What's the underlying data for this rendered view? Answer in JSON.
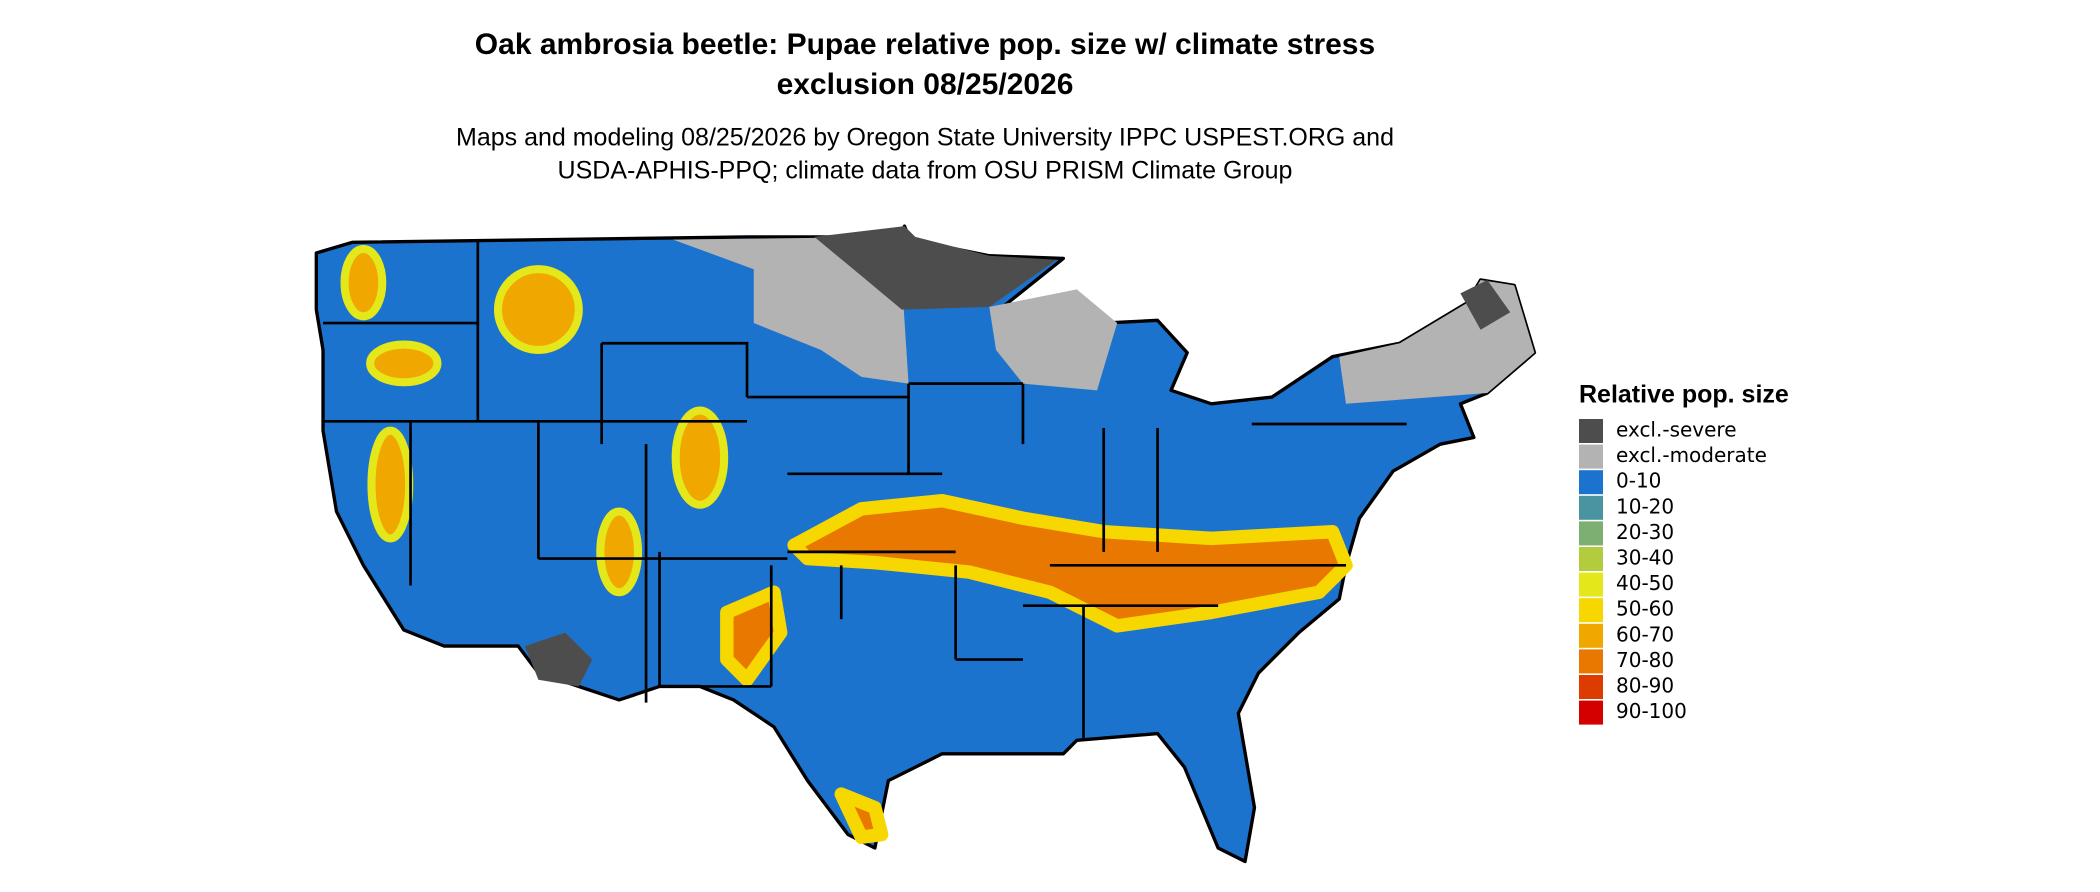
{
  "title": [
    "Oak ambrosia beetle: Pupae relative pop. size w/ climate stress",
    "exclusion 08/25/2026"
  ],
  "subtitle": [
    "Maps and modeling 08/25/2026 by Oregon State University IPPC USPEST.ORG and",
    "USDA-APHIS-PPQ; climate data from OSU PRISM Climate Group"
  ],
  "legend": {
    "title": "Relative pop. size",
    "items": [
      {
        "label": "excl.-severe",
        "color": "#4d4d4d"
      },
      {
        "label": "excl.-moderate",
        "color": "#b3b3b3"
      },
      {
        "label": "0-10",
        "color": "#1c73ce"
      },
      {
        "label": "10-20",
        "color": "#4a93a0"
      },
      {
        "label": "20-30",
        "color": "#7dae72"
      },
      {
        "label": "30-40",
        "color": "#b3cc3e"
      },
      {
        "label": "40-50",
        "color": "#e4e81a"
      },
      {
        "label": "50-60",
        "color": "#f6d800"
      },
      {
        "label": "60-70",
        "color": "#f0a800"
      },
      {
        "label": "70-80",
        "color": "#e87800"
      },
      {
        "label": "80-90",
        "color": "#dc3c00"
      },
      {
        "label": "90-100",
        "color": "#d40000"
      }
    ]
  }
}
